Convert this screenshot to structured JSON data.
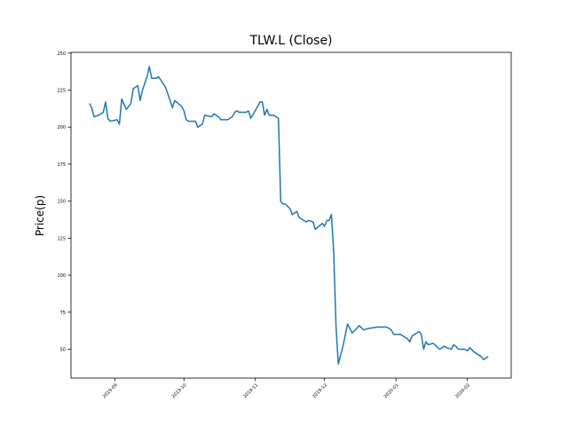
{
  "chart_data": {
    "type": "line",
    "title": "TLW.L (Close)",
    "y_label": "Price(p)",
    "x": [
      18129,
      18130,
      18131,
      18133,
      18135,
      18136,
      18137,
      18138,
      18141,
      18142,
      18143,
      18145,
      18147,
      18148,
      18150,
      18151,
      18152,
      18154,
      18155,
      18156,
      18157,
      18158,
      18159,
      18162,
      18164,
      18165,
      18166,
      18169,
      18170,
      18171,
      18172,
      18175,
      18176,
      18178,
      18179,
      18182,
      18183,
      18185,
      18186,
      18189,
      18191,
      18192,
      18193,
      18194,
      18197,
      18198,
      18199,
      18202,
      18203,
      18204,
      18205,
      18206,
      18207,
      18209,
      18211,
      18212,
      18213,
      18214,
      18216,
      18217,
      18218,
      18219,
      18220,
      18222,
      18223,
      18224,
      18226,
      18227,
      18230,
      18231,
      18232,
      18233,
      18234,
      18235,
      18236,
      18237,
      18239,
      18241,
      18242,
      18243,
      18245,
      18246,
      18248,
      18250,
      18254,
      18258,
      18260,
      18261,
      18264,
      18265,
      18267,
      18268,
      18269,
      18272,
      18273,
      18274,
      18275,
      18276,
      18278,
      18279,
      18280,
      18281,
      18283,
      18284,
      18286,
      18287,
      18288,
      18289,
      18292,
      18293,
      18294,
      18296,
      18299,
      18300,
      18302
    ],
    "series": [
      {
        "name": "Close",
        "color": "#1f77b4",
        "values": [
          216,
          213,
          207,
          208,
          210,
          217,
          206,
          204,
          205,
          202,
          219,
          212,
          216,
          226,
          228,
          218,
          225,
          234,
          241,
          233,
          233,
          233,
          234,
          227,
          218,
          213,
          218,
          214,
          211,
          205,
          204,
          204,
          200,
          202,
          208,
          207,
          209,
          207,
          205,
          205,
          207,
          210,
          211,
          210,
          210,
          211,
          206,
          214,
          217,
          217,
          208,
          212,
          208,
          208,
          206,
          150,
          148,
          148,
          145,
          141,
          142,
          143,
          139,
          137,
          136,
          137,
          136,
          131,
          135,
          133,
          137,
          137,
          141,
          115,
          65,
          40,
          52,
          67,
          64,
          61,
          64,
          66,
          63,
          64,
          65,
          65,
          63,
          60,
          60,
          59,
          57,
          55,
          59,
          62,
          60,
          50,
          55,
          53,
          54,
          53,
          51,
          50,
          52,
          51,
          50,
          53,
          52,
          50,
          50,
          49,
          51,
          48,
          45,
          43,
          45
        ]
      }
    ],
    "xlim": [
      18121,
      18312
    ],
    "xticks": [
      {
        "value": 18140,
        "label": "2019-09"
      },
      {
        "value": 18170,
        "label": "2019-10"
      },
      {
        "value": 18201,
        "label": "2019-11"
      },
      {
        "value": 18231,
        "label": "2019-12"
      },
      {
        "value": 18262,
        "label": "2020-01"
      },
      {
        "value": 18293,
        "label": "2020-02"
      }
    ],
    "ylim": [
      30.5,
      250.5
    ],
    "yticks": [
      50,
      75,
      100,
      125,
      150,
      175,
      200,
      225,
      250
    ],
    "grid": false
  }
}
